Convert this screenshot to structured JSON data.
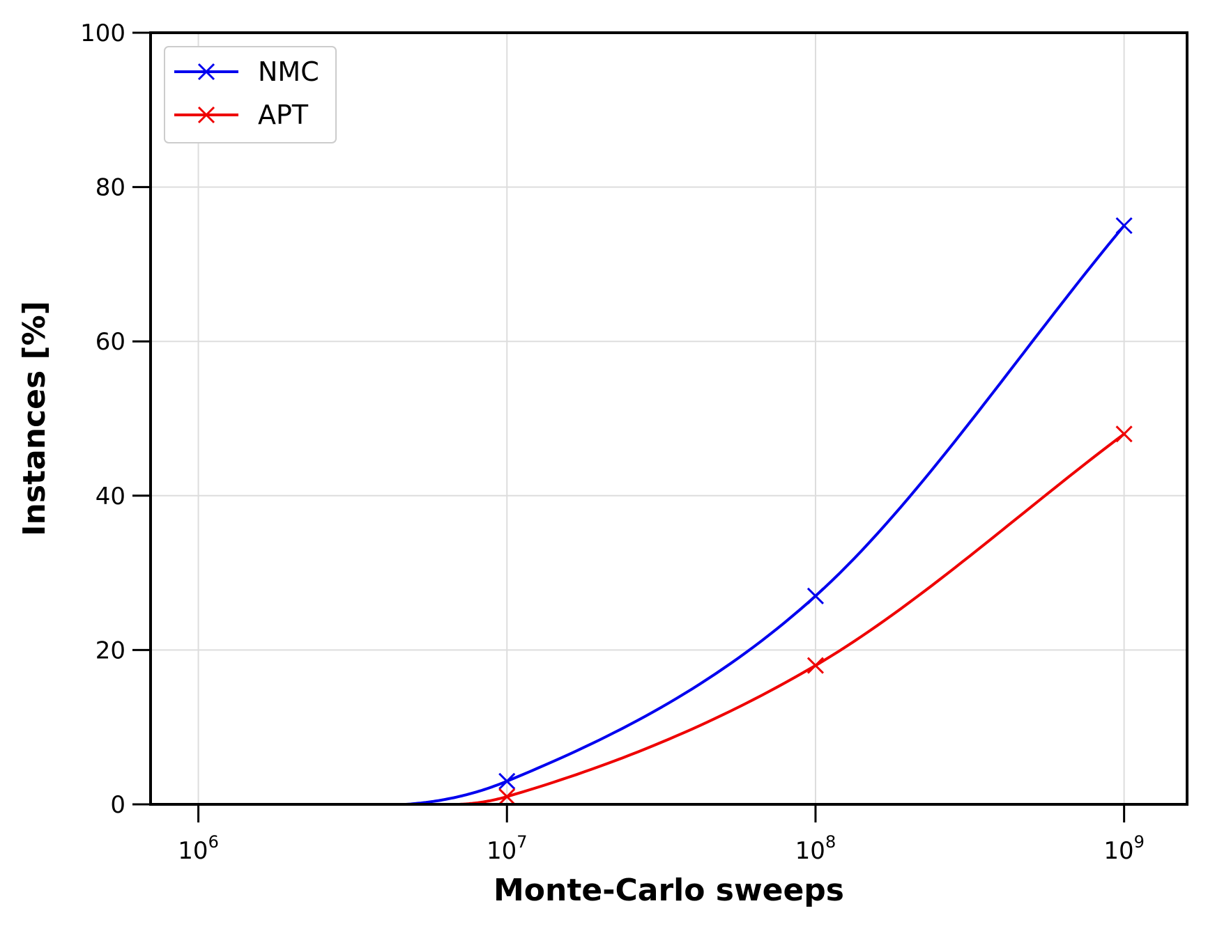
{
  "chart_data": {
    "type": "line",
    "xlabel": "Monte-Carlo sweeps",
    "ylabel": "Instances [%]",
    "x_scale": "log",
    "xlim": [
      700000,
      1600000000
    ],
    "ylim": [
      0,
      100
    ],
    "x_ticks": [
      {
        "value": 1000000,
        "base": "10",
        "exp": "6"
      },
      {
        "value": 10000000,
        "base": "10",
        "exp": "7"
      },
      {
        "value": 100000000,
        "base": "10",
        "exp": "8"
      },
      {
        "value": 1000000000,
        "base": "10",
        "exp": "9"
      }
    ],
    "y_ticks": [
      "0",
      "20",
      "40",
      "60",
      "80",
      "100"
    ],
    "grid": true,
    "legend_position": "top-left",
    "marker": "x",
    "series": [
      {
        "name": "NMC",
        "color": "#0000ee",
        "x": [
          10000000,
          100000000,
          1000000000
        ],
        "y": [
          3,
          27,
          75
        ],
        "curve_start_x": 4700000
      },
      {
        "name": "APT",
        "color": "#ee0000",
        "x": [
          10000000,
          100000000,
          1000000000
        ],
        "y": [
          1,
          18,
          48
        ],
        "curve_start_x": 7000000
      }
    ]
  }
}
